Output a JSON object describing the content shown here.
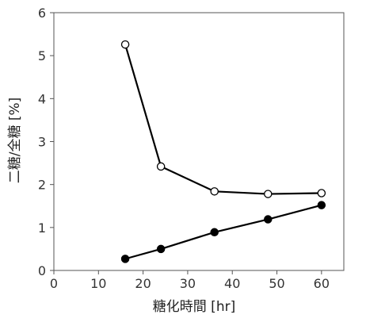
{
  "chart_data": {
    "type": "line",
    "xlabel": "糖化時間 [hr]",
    "ylabel": "二糖/全糖 [%]",
    "xlim": [
      0,
      65
    ],
    "ylim": [
      0,
      6
    ],
    "x_ticks": [
      0,
      10,
      20,
      30,
      40,
      50,
      60
    ],
    "y_ticks": [
      0,
      1,
      2,
      3,
      4,
      5,
      6
    ],
    "grid": false,
    "legend": "none",
    "series": [
      {
        "marker": "open-circle",
        "x": [
          16,
          24,
          36,
          48,
          60
        ],
        "y": [
          5.26,
          2.42,
          1.84,
          1.78,
          1.8
        ]
      },
      {
        "marker": "filled-circle",
        "x": [
          16,
          24,
          36,
          48,
          60
        ],
        "y": [
          0.27,
          0.5,
          0.89,
          1.19,
          1.52
        ]
      }
    ],
    "colors": {
      "axis": "#555555",
      "line": "#000000",
      "marker_fill_open": "#ffffff",
      "marker_fill_filled": "#000000"
    }
  }
}
